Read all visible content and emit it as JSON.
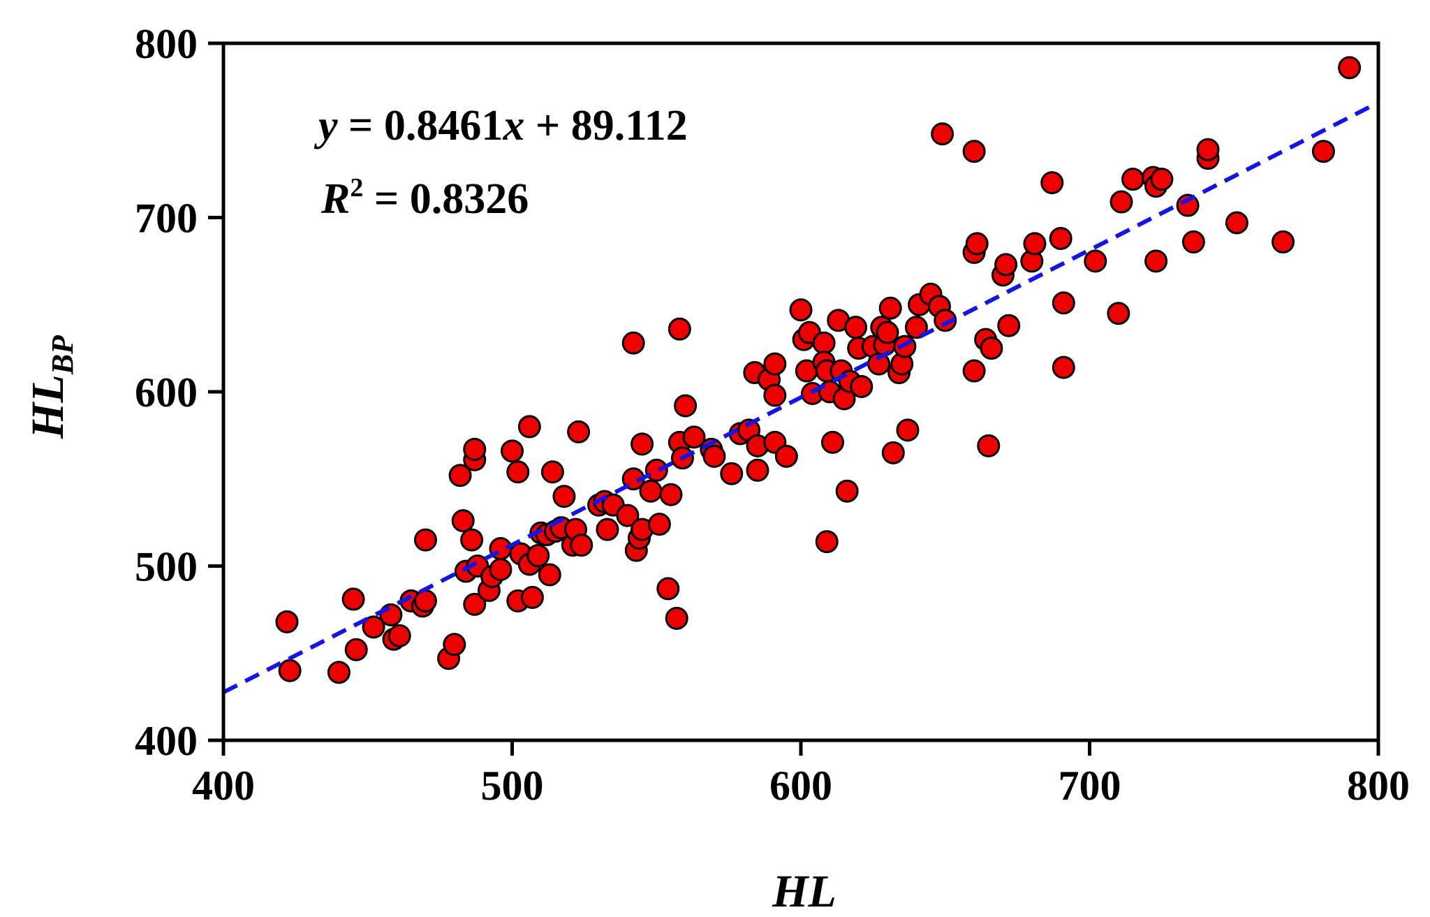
{
  "chart_data": {
    "type": "scatter",
    "xlabel": "HL",
    "ylabel": {
      "main": "HL",
      "sub": "BP"
    },
    "xlim": [
      400,
      800
    ],
    "ylim": [
      400,
      800
    ],
    "xticks": [
      400,
      500,
      600,
      700,
      800
    ],
    "yticks": [
      400,
      500,
      600,
      700,
      800
    ],
    "grid": false,
    "annotation": {
      "equation": {
        "y": "y",
        "eq": " = 0.8461",
        "x": "x",
        "rest": " + 89.112"
      },
      "r2": {
        "R": "R",
        "sup": "2",
        "rest": " = 0.8326"
      }
    },
    "fit": {
      "slope": 0.8461,
      "intercept": 89.112,
      "color": "#1414e6",
      "style": "dashed"
    },
    "marker": {
      "fill": "#ee0000",
      "stroke": "#000000"
    },
    "series": [
      {
        "points": [
          [
            422,
            468
          ],
          [
            423,
            440
          ],
          [
            440,
            439
          ],
          [
            445,
            481
          ],
          [
            446,
            452
          ],
          [
            452,
            465
          ],
          [
            458,
            472
          ],
          [
            459,
            458
          ],
          [
            461,
            460
          ],
          [
            465,
            480
          ],
          [
            469,
            477
          ],
          [
            470,
            480
          ],
          [
            470,
            515
          ],
          [
            478,
            447
          ],
          [
            480,
            455
          ],
          [
            482,
            552
          ],
          [
            483,
            526
          ],
          [
            484,
            497
          ],
          [
            486,
            515
          ],
          [
            487,
            561
          ],
          [
            487,
            567
          ],
          [
            487,
            478
          ],
          [
            488,
            500
          ],
          [
            492,
            486
          ],
          [
            493,
            494
          ],
          [
            496,
            498
          ],
          [
            496,
            510
          ],
          [
            500,
            566
          ],
          [
            502,
            554
          ],
          [
            502,
            480
          ],
          [
            503,
            507
          ],
          [
            506,
            580
          ],
          [
            506,
            501
          ],
          [
            507,
            482
          ],
          [
            509,
            506
          ],
          [
            510,
            519
          ],
          [
            512,
            518
          ],
          [
            513,
            495
          ],
          [
            514,
            554
          ],
          [
            515,
            520
          ],
          [
            517,
            522
          ],
          [
            518,
            540
          ],
          [
            521,
            512
          ],
          [
            522,
            521
          ],
          [
            523,
            577
          ],
          [
            524,
            512
          ],
          [
            530,
            535
          ],
          [
            532,
            537
          ],
          [
            533,
            521
          ],
          [
            535,
            535
          ],
          [
            540,
            529
          ],
          [
            542,
            550
          ],
          [
            542,
            628
          ],
          [
            543,
            509
          ],
          [
            544,
            516
          ],
          [
            545,
            521
          ],
          [
            545,
            570
          ],
          [
            548,
            543
          ],
          [
            550,
            555
          ],
          [
            551,
            524
          ],
          [
            554,
            487
          ],
          [
            555,
            541
          ],
          [
            557,
            470
          ],
          [
            558,
            571
          ],
          [
            558,
            636
          ],
          [
            559,
            562
          ],
          [
            560,
            592
          ],
          [
            563,
            574
          ],
          [
            569,
            567
          ],
          [
            570,
            563
          ],
          [
            576,
            553
          ],
          [
            579,
            576
          ],
          [
            582,
            578
          ],
          [
            584,
            611
          ],
          [
            585,
            569
          ],
          [
            585,
            555
          ],
          [
            589,
            607
          ],
          [
            591,
            598
          ],
          [
            591,
            616
          ],
          [
            591,
            571
          ],
          [
            595,
            563
          ],
          [
            600,
            647
          ],
          [
            601,
            630
          ],
          [
            602,
            612
          ],
          [
            603,
            634
          ],
          [
            604,
            599
          ],
          [
            608,
            628
          ],
          [
            608,
            617
          ],
          [
            609,
            612
          ],
          [
            609,
            514
          ],
          [
            610,
            600
          ],
          [
            611,
            571
          ],
          [
            613,
            641
          ],
          [
            614,
            612
          ],
          [
            615,
            596
          ],
          [
            616,
            543
          ],
          [
            617,
            606
          ],
          [
            619,
            637
          ],
          [
            620,
            625
          ],
          [
            621,
            603
          ],
          [
            625,
            626
          ],
          [
            627,
            616
          ],
          [
            628,
            637
          ],
          [
            629,
            627
          ],
          [
            630,
            634
          ],
          [
            631,
            648
          ],
          [
            632,
            565
          ],
          [
            634,
            611
          ],
          [
            635,
            616
          ],
          [
            636,
            626
          ],
          [
            637,
            578
          ],
          [
            640,
            637
          ],
          [
            641,
            650
          ],
          [
            645,
            656
          ],
          [
            648,
            649
          ],
          [
            650,
            641
          ],
          [
            649,
            748
          ],
          [
            660,
            738
          ],
          [
            660,
            612
          ],
          [
            660,
            680
          ],
          [
            661,
            685
          ],
          [
            664,
            630
          ],
          [
            665,
            569
          ],
          [
            666,
            625
          ],
          [
            670,
            667
          ],
          [
            671,
            673
          ],
          [
            672,
            638
          ],
          [
            680,
            675
          ],
          [
            681,
            685
          ],
          [
            687,
            720
          ],
          [
            690,
            688
          ],
          [
            691,
            651
          ],
          [
            691,
            614
          ],
          [
            702,
            675
          ],
          [
            710,
            645
          ],
          [
            711,
            709
          ],
          [
            715,
            722
          ],
          [
            722,
            723
          ],
          [
            723,
            718
          ],
          [
            723,
            675
          ],
          [
            725,
            722
          ],
          [
            734,
            707
          ],
          [
            736,
            686
          ],
          [
            741,
            734
          ],
          [
            741,
            739
          ],
          [
            751,
            697
          ],
          [
            767,
            686
          ],
          [
            781,
            738
          ],
          [
            790,
            786
          ]
        ]
      }
    ]
  }
}
